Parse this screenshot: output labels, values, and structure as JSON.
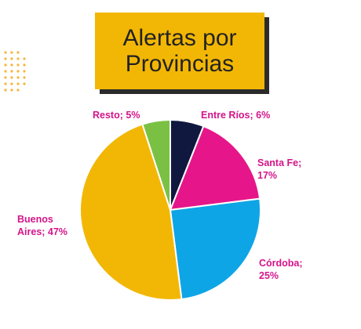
{
  "title": "Alertas por\nProvincias",
  "chart_data": {
    "type": "pie",
    "title": "Alertas por Provincias",
    "start_angle_deg": 0,
    "direction": "clockwise",
    "slices": [
      {
        "name": "Entre Ríos",
        "value": 6,
        "color": "#101840",
        "label_lines": [
          "Entre Ríos; 6%"
        ]
      },
      {
        "name": "Santa Fe",
        "value": 17,
        "color": "#e6168a",
        "label_lines": [
          "Santa Fe;",
          "17%"
        ]
      },
      {
        "name": "Córdoba",
        "value": 25,
        "color": "#0ea5e6",
        "label_lines": [
          "Córdoba;",
          "25%"
        ]
      },
      {
        "name": "Buenos Aires",
        "value": 47,
        "color": "#f2b705",
        "label_lines": [
          "Buenos",
          "Aires; 47%"
        ]
      },
      {
        "name": "Resto",
        "value": 5,
        "color": "#7ac143",
        "label_lines": [
          "Resto; 5%"
        ]
      }
    ],
    "label_color": "#d4148a"
  },
  "colors": {
    "title_bg": "#f2b705",
    "title_shadow": "#2b2b2b",
    "deco_dots": "#f7b53c"
  }
}
